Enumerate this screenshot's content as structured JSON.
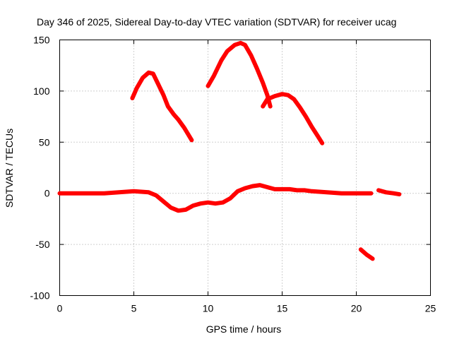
{
  "chart_data": {
    "type": "line",
    "title": "Day 346 of 2025, Sidereal Day-to-day VTEC variation (SDTVAR) for receiver ucag",
    "xlabel": "GPS time / hours",
    "ylabel": "SDTVAR / TECUs",
    "xlim": [
      0,
      25
    ],
    "ylim": [
      -100,
      150
    ],
    "xticks": [
      0,
      5,
      10,
      15,
      20,
      25
    ],
    "yticks": [
      -100,
      -50,
      0,
      50,
      100,
      150
    ],
    "xtick_labels": [
      "0",
      "5",
      "10",
      "15",
      "20",
      "25"
    ],
    "ytick_labels": [
      "-100",
      "-50",
      "0",
      "50",
      "100",
      "150"
    ],
    "grid": true,
    "color": "#ff0000",
    "series": [
      {
        "name": "arc-1",
        "points": [
          [
            4.9,
            93
          ],
          [
            5.2,
            103
          ],
          [
            5.6,
            113
          ],
          [
            6.0,
            118
          ],
          [
            6.3,
            117
          ],
          [
            6.6,
            108
          ],
          [
            7.0,
            96
          ],
          [
            7.3,
            85
          ],
          [
            7.7,
            77
          ],
          [
            8.0,
            72
          ],
          [
            8.4,
            64
          ],
          [
            8.9,
            52
          ]
        ]
      },
      {
        "name": "arc-2",
        "points": [
          [
            10.0,
            105
          ],
          [
            10.4,
            115
          ],
          [
            10.9,
            130
          ],
          [
            11.3,
            139
          ],
          [
            11.8,
            145
          ],
          [
            12.2,
            147
          ],
          [
            12.5,
            145
          ],
          [
            12.9,
            135
          ],
          [
            13.3,
            122
          ],
          [
            13.7,
            108
          ],
          [
            14.0,
            96
          ],
          [
            14.2,
            85
          ]
        ]
      },
      {
        "name": "arc-3",
        "points": [
          [
            13.7,
            85
          ],
          [
            14.0,
            92
          ],
          [
            14.5,
            95
          ],
          [
            15.0,
            97
          ],
          [
            15.4,
            96
          ],
          [
            15.8,
            92
          ],
          [
            16.2,
            84
          ],
          [
            16.6,
            75
          ],
          [
            17.0,
            65
          ],
          [
            17.4,
            56
          ],
          [
            17.7,
            49
          ]
        ]
      },
      {
        "name": "baseline",
        "points": [
          [
            0.0,
            0
          ],
          [
            1.0,
            0
          ],
          [
            2.0,
            0
          ],
          [
            3.0,
            0
          ],
          [
            4.0,
            1
          ],
          [
            5.0,
            2
          ],
          [
            6.0,
            1
          ],
          [
            6.5,
            -2
          ],
          [
            7.0,
            -8
          ],
          [
            7.5,
            -14
          ],
          [
            8.0,
            -17
          ],
          [
            8.5,
            -16
          ],
          [
            9.0,
            -12
          ],
          [
            9.5,
            -10
          ],
          [
            10.0,
            -9
          ],
          [
            10.5,
            -10
          ],
          [
            11.0,
            -9
          ],
          [
            11.5,
            -5
          ],
          [
            12.0,
            2
          ],
          [
            12.5,
            5
          ],
          [
            13.0,
            7
          ],
          [
            13.5,
            8
          ],
          [
            14.0,
            6
          ],
          [
            14.5,
            4
          ],
          [
            15.0,
            4
          ],
          [
            15.5,
            4
          ],
          [
            16.0,
            3
          ],
          [
            16.5,
            3
          ],
          [
            17.0,
            2
          ],
          [
            18.0,
            1
          ],
          [
            19.0,
            0
          ],
          [
            20.0,
            0
          ],
          [
            21.0,
            0
          ]
        ]
      },
      {
        "name": "tail",
        "points": [
          [
            21.5,
            3
          ],
          [
            22.0,
            1
          ],
          [
            22.5,
            0
          ],
          [
            22.9,
            -1
          ]
        ]
      },
      {
        "name": "short-segment",
        "points": [
          [
            20.3,
            -55
          ],
          [
            20.7,
            -60
          ],
          [
            21.1,
            -64
          ]
        ]
      }
    ]
  }
}
